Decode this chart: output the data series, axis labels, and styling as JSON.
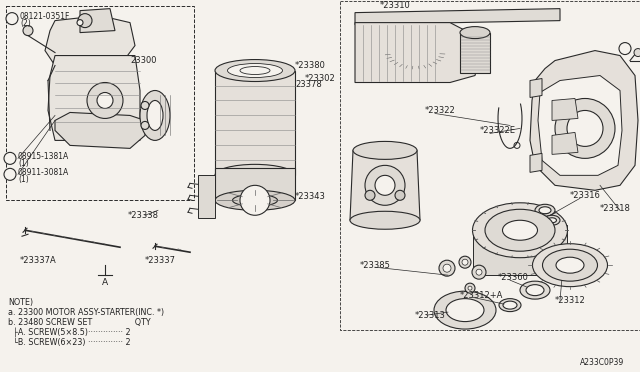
{
  "bg_color": "#f5f2ed",
  "line_color": "#2a2a2a",
  "text_color": "#222222",
  "diagram_id": "A233C0P39",
  "figsize": [
    6.4,
    3.72
  ],
  "dpi": 100,
  "notes_lines": [
    "NOTE)",
    "a. 23300 MOTOR ASSY-STARTER(INC. *)",
    "b. 23480 SCREW SET                 QTY",
    "  ├A. SCREW(5×8.5)·············· 2",
    "  └B. SCREW(6×23) ·············· 2"
  ]
}
